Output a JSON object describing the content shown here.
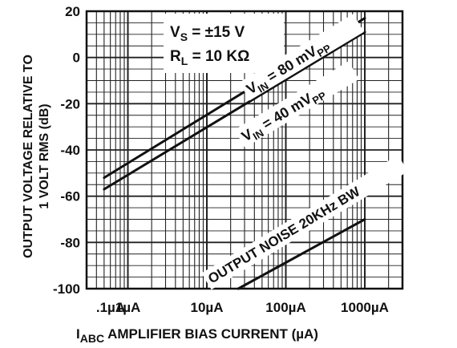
{
  "chart_data": {
    "type": "line",
    "x_scale": "log",
    "xlim": [
      0.3,
      3000
    ],
    "ylim": [
      -100,
      20
    ],
    "grid": true,
    "x_ticks": [
      0.1,
      1,
      10,
      100,
      1000
    ],
    "x_tick_labels": [
      ".1µA",
      "1µA",
      "10µA",
      "100µA",
      "1000µA"
    ],
    "y_ticks": [
      20,
      0,
      -20,
      -40,
      -60,
      -80,
      -100
    ],
    "y_tick_labels": [
      "20",
      "0",
      "-20",
      "-40",
      "-60",
      "-80",
      "-100"
    ],
    "xlabel_main": "AMPLIFIER BIAS CURRENT (µA)",
    "xlabel_prefix": "I",
    "xlabel_subscript": "ABC",
    "ylabel_line1": "OUTPUT VOLTAGE RELATIVE TO",
    "ylabel_line2": "1 VOLT RMS (dB)",
    "annotations": {
      "vs_main": "V",
      "vs_sub": "S",
      "vs_rest": " = ±15 V",
      "rl_main": "R",
      "rl_sub": "L",
      "rl_rest": " = 10 KΩ"
    },
    "series": [
      {
        "name": "V_IN = 80 mV_PP",
        "label_main": "V",
        "label_sub1": "IN",
        "label_mid": " = 80 mV",
        "label_sub2": "PP",
        "x": [
          0.5,
          1000
        ],
        "y": [
          -52,
          17
        ]
      },
      {
        "name": "V_IN = 40 mV_PP",
        "label_main": "V",
        "label_sub1": "IN",
        "label_mid": " = 40 mV",
        "label_sub2": "PP",
        "x": [
          0.5,
          1000
        ],
        "y": [
          -57,
          11
        ]
      },
      {
        "name": "OUTPUT NOISE 20KHz BW",
        "label_main": "OUTPUT NOISE 20KHz BW",
        "x": [
          25,
          1000
        ],
        "y": [
          -100,
          -70
        ]
      }
    ]
  }
}
